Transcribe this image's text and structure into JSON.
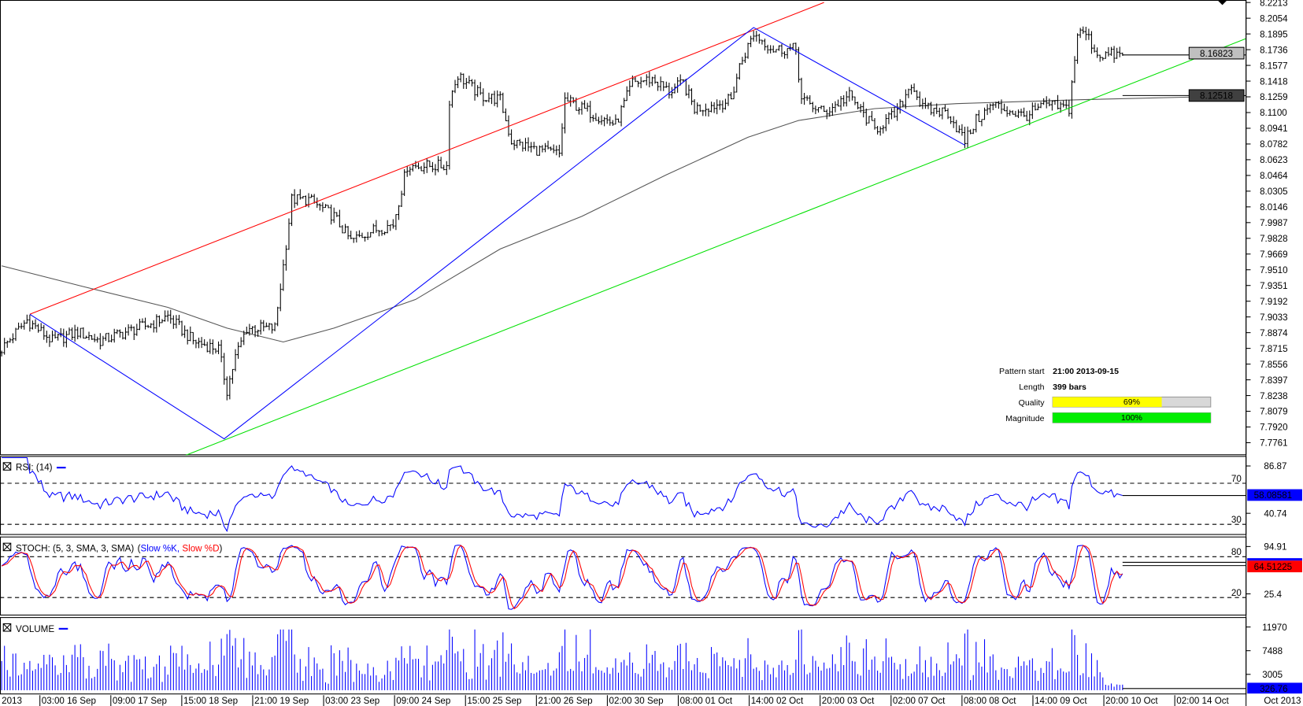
{
  "chart_data": {
    "type": "line",
    "title": "",
    "price_axis": {
      "ylim": [
        7.7761,
        8.2213
      ],
      "ticks": [
        "8.2213",
        "8.2054",
        "8.1895",
        "8.1736",
        "8.1577",
        "8.1418",
        "8.1259",
        "8.1100",
        "8.0941",
        "8.0782",
        "8.0623",
        "8.0464",
        "8.0305",
        "8.0146",
        "7.9987",
        "7.9828",
        "7.9669",
        "7.9510",
        "7.9351",
        "7.9192",
        "7.9033",
        "7.8874",
        "7.8715",
        "7.8556",
        "7.8397",
        "7.8238",
        "7.8079",
        "7.7920",
        "7.7761"
      ]
    },
    "bars_count": 399,
    "price_close_waypoints": [
      [
        0,
        7.871
      ],
      [
        9,
        7.9
      ],
      [
        18,
        7.879
      ],
      [
        27,
        7.888
      ],
      [
        35,
        7.879
      ],
      [
        44,
        7.888
      ],
      [
        53,
        7.896
      ],
      [
        59,
        7.904
      ],
      [
        68,
        7.879
      ],
      [
        77,
        7.871
      ],
      [
        80,
        7.829
      ],
      [
        83,
        7.863
      ],
      [
        87,
        7.892
      ],
      [
        97,
        7.892
      ],
      [
        100,
        7.955
      ],
      [
        103,
        8.022
      ],
      [
        109,
        8.022
      ],
      [
        118,
        8.005
      ],
      [
        124,
        7.98
      ],
      [
        130,
        7.989
      ],
      [
        139,
        7.997
      ],
      [
        144,
        8.056
      ],
      [
        150,
        8.056
      ],
      [
        158,
        8.056
      ],
      [
        159,
        8.123
      ],
      [
        162,
        8.148
      ],
      [
        170,
        8.127
      ],
      [
        177,
        8.123
      ],
      [
        181,
        8.081
      ],
      [
        189,
        8.073
      ],
      [
        198,
        8.068
      ],
      [
        200,
        8.123
      ],
      [
        206,
        8.114
      ],
      [
        212,
        8.106
      ],
      [
        218,
        8.098
      ],
      [
        224,
        8.14
      ],
      [
        231,
        8.144
      ],
      [
        237,
        8.131
      ],
      [
        242,
        8.14
      ],
      [
        246,
        8.114
      ],
      [
        254,
        8.118
      ],
      [
        259,
        8.123
      ],
      [
        262,
        8.157
      ],
      [
        267,
        8.19
      ],
      [
        274,
        8.174
      ],
      [
        282,
        8.174
      ],
      [
        284,
        8.123
      ],
      [
        292,
        8.11
      ],
      [
        301,
        8.127
      ],
      [
        310,
        8.093
      ],
      [
        318,
        8.11
      ],
      [
        323,
        8.14
      ],
      [
        327,
        8.114
      ],
      [
        336,
        8.11
      ],
      [
        342,
        8.081
      ],
      [
        346,
        8.102
      ],
      [
        352,
        8.118
      ],
      [
        363,
        8.106
      ],
      [
        371,
        8.118
      ],
      [
        379,
        8.114
      ],
      [
        382,
        8.19
      ],
      [
        385,
        8.19
      ],
      [
        389,
        8.169
      ],
      [
        398,
        8.168
      ]
    ],
    "moving_average_waypoints": [
      [
        0,
        7.955
      ],
      [
        29,
        7.934
      ],
      [
        59,
        7.913
      ],
      [
        80,
        7.892
      ],
      [
        100,
        7.878
      ],
      [
        118,
        7.892
      ],
      [
        147,
        7.921
      ],
      [
        177,
        7.972
      ],
      [
        206,
        8.005
      ],
      [
        236,
        8.047
      ],
      [
        265,
        8.085
      ],
      [
        283,
        8.102
      ],
      [
        310,
        8.114
      ],
      [
        339,
        8.119
      ],
      [
        383,
        8.123
      ],
      [
        442,
        8.127
      ]
    ],
    "pattern_lines": {
      "resistance": {
        "color": "#ff0000",
        "points": [
          [
            10,
            7.906
          ],
          [
            292,
            8.2213
          ]
        ]
      },
      "support": {
        "color": "#00e000",
        "points": [
          [
            65,
            7.763
          ],
          [
            442,
            8.185
          ]
        ]
      },
      "zigzag": {
        "color": "#0000ff",
        "points": [
          [
            10,
            7.906
          ],
          [
            79,
            7.78
          ],
          [
            267,
            8.196
          ],
          [
            342,
            8.077
          ]
        ]
      }
    },
    "current_price": "8.16823",
    "ma_value": "8.12518",
    "x_labels": [
      "2013",
      "03:00 16 Sep",
      "09:00 17 Sep",
      "15:00 18 Sep",
      "21:00 19 Sep",
      "03:00 23 Sep",
      "09:00 24 Sep",
      "15:00 25 Sep",
      "21:00 26 Sep",
      "02:00 30 Sep",
      "08:00 01 Oct",
      "14:00 02 Oct",
      "20:00 03 Oct",
      "02:00 07 Oct",
      "08:00 08 Oct",
      "14:00 09 Oct",
      "20:00 10 Oct",
      "02:00 14 Oct",
      "Oct 2013"
    ],
    "rsi": {
      "label": "RSI: (14)",
      "period": 14,
      "levels": [
        "70",
        "30"
      ],
      "ticks": [
        "86.87",
        "40.74"
      ],
      "last": "58.08581",
      "color": "#0000ff"
    },
    "stoch": {
      "label": "STOCH: (5, 3, SMA, 3, SMA)",
      "k_label": "Slow %K,",
      "d_label": "Slow %D",
      "k_color": "#0000ff",
      "d_color": "#ff0000",
      "levels": [
        "80",
        "20"
      ],
      "ticks": [
        "94.91",
        "25.4"
      ],
      "last": "64.51225"
    },
    "volume": {
      "label": "VOLUME",
      "ticks": [
        "11970",
        "7488",
        "3005"
      ],
      "last": "326.76",
      "color": "#0000ff"
    }
  },
  "pattern_info": {
    "start_label": "Pattern start",
    "start_value": "21:00 2013-09-15",
    "length_label": "Length",
    "length_value": "399 bars",
    "quality_label": "Quality",
    "quality_text": "69%",
    "quality": 0.69,
    "magnitude_label": "Magnitude",
    "magnitude_text": "100%",
    "magnitude": 1.0,
    "quality_color": "#ffff00",
    "magnitude_color": "#00ee00"
  }
}
